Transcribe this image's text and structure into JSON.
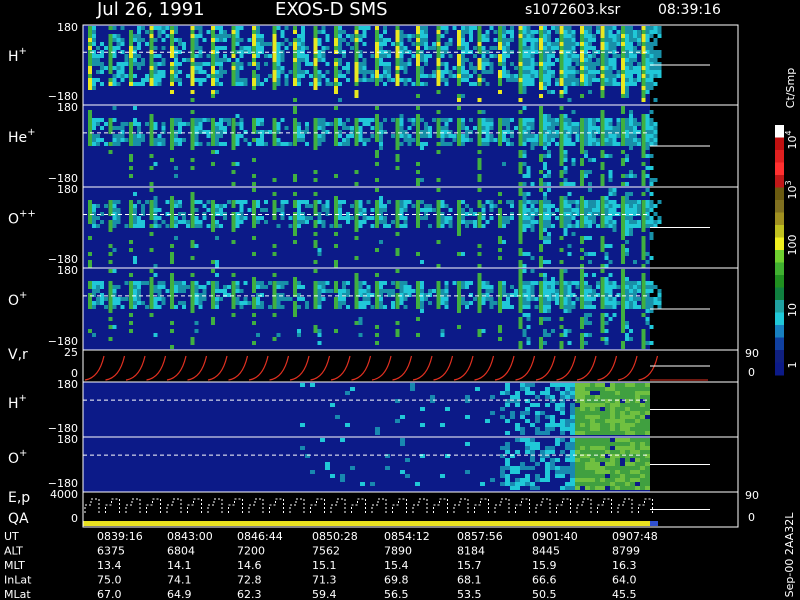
{
  "header": {
    "date": "Jul 26, 1991",
    "instrument": "EXOS-D SMS",
    "file": "s1072603.ksr",
    "time": "08:39:16"
  },
  "panels": [
    {
      "label": "H",
      "sup": "+",
      "top": "180",
      "bottom": "−180"
    },
    {
      "label": "He",
      "sup": "+",
      "top": "180",
      "bottom": "−180"
    },
    {
      "label": "O",
      "sup": "++",
      "top": "180",
      "bottom": "−180"
    },
    {
      "label": "O",
      "sup": "+",
      "top": "180",
      "bottom": "−180"
    },
    {
      "label": "V,r",
      "top": "25",
      "bottom": "0",
      "right_top": "90",
      "right_bottom": "0"
    },
    {
      "label": "H",
      "sup": "+",
      "top": "180",
      "bottom": "−180"
    },
    {
      "label": "O",
      "sup": "+",
      "top": "180",
      "bottom": "−180"
    },
    {
      "label": "E,p",
      "label2": "QA",
      "top": "4000",
      "bottom": "0",
      "right_top": "90",
      "right_bottom": "0"
    }
  ],
  "colorbar": {
    "unit": "Ct/Smp",
    "labels": [
      {
        "base": "10",
        "exp": "4"
      },
      {
        "base": "10",
        "exp": "3"
      },
      "100",
      "10",
      "1"
    ]
  },
  "footer": {
    "rows": [
      [
        "UT",
        "0839:16",
        "0843:00",
        "0846:44",
        "0850:28",
        "0854:12",
        "0857:56",
        "0901:40",
        "0907:48"
      ],
      [
        "ALT",
        "6375",
        "6804",
        "7200",
        "7562",
        "7890",
        "8184",
        "8445",
        "8799"
      ],
      [
        "MLT",
        "13.4",
        "14.1",
        "14.6",
        "15.1",
        "15.4",
        "15.7",
        "15.9",
        "16.3"
      ],
      [
        "InLat",
        "75.0",
        "74.1",
        "72.8",
        "71.3",
        "69.8",
        "68.1",
        "66.6",
        "64.0"
      ],
      [
        "MLat",
        "67.0",
        "64.9",
        "62.3",
        "59.4",
        "56.5",
        "53.5",
        "50.5",
        "45.5"
      ]
    ]
  },
  "stamp": "Sep-00 2AA32L"
}
